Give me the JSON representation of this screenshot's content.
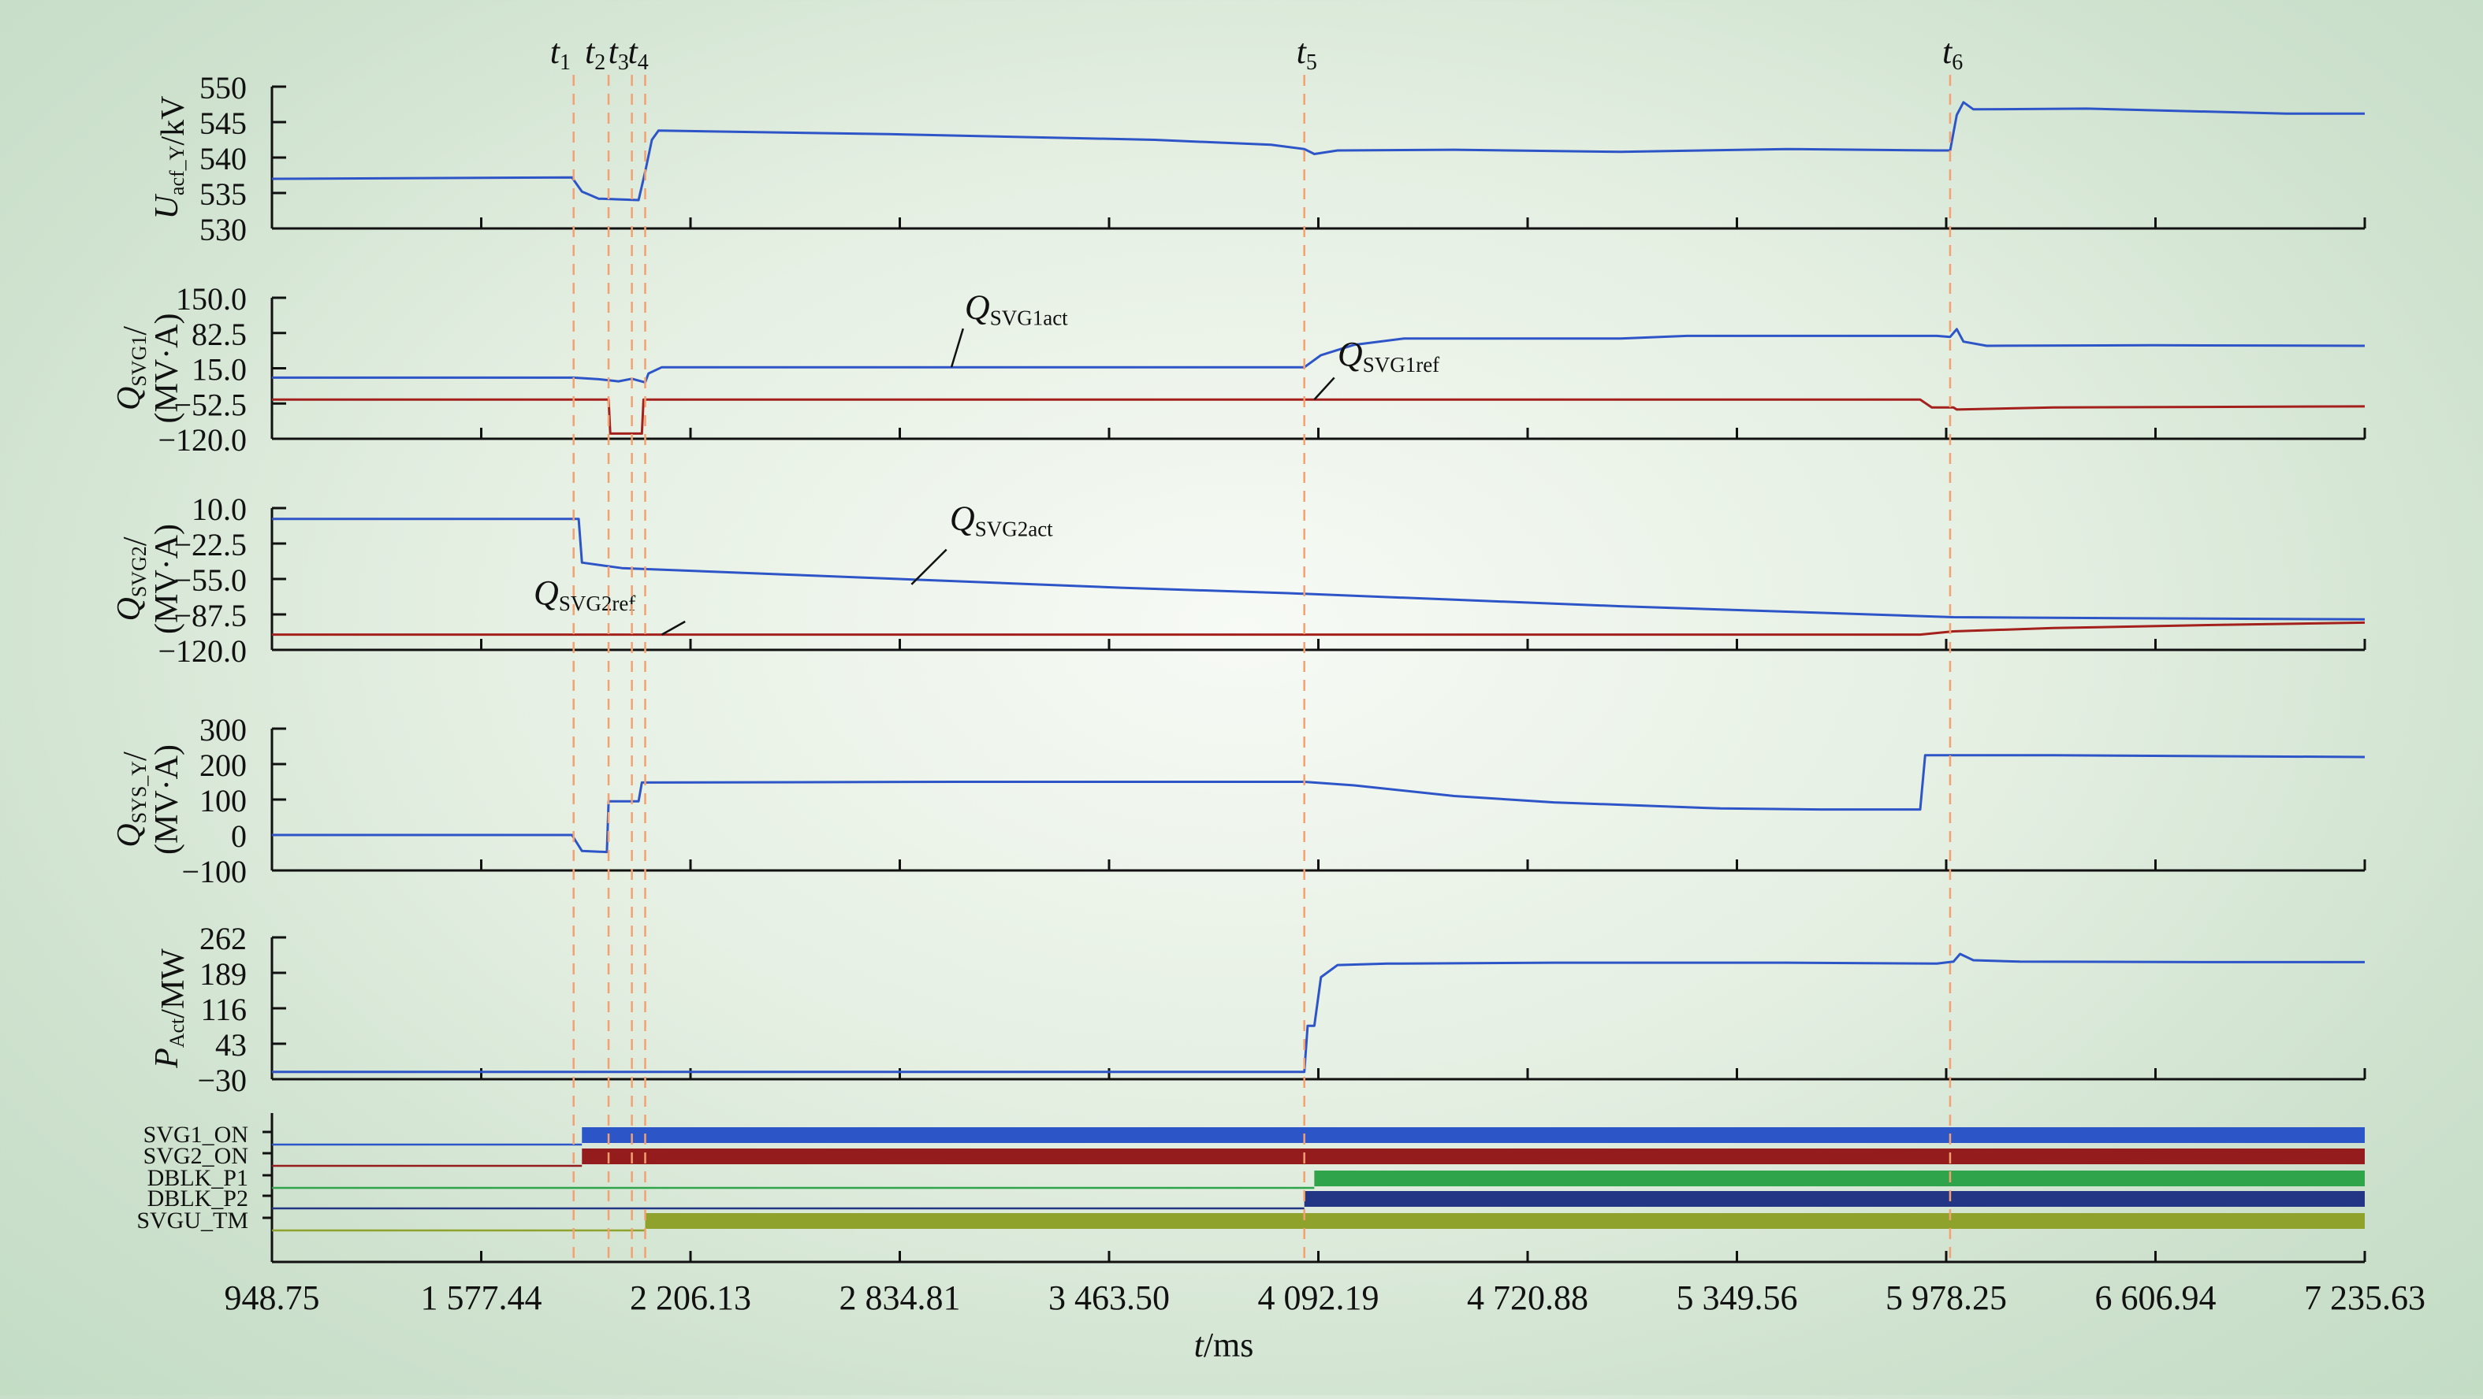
{
  "chart_data": {
    "type": "line",
    "x_unit_label": {
      "italic": "t",
      "rest": "/ms"
    },
    "x_ticks": [
      "948.75",
      "1 577.44",
      "2 206.13",
      "2 834.81",
      "3 463.50",
      "4 092.19",
      "4 720.88",
      "5 349.56",
      "5 978.25",
      "6 606.94",
      "7 235.63"
    ],
    "xlim": [
      948.75,
      7235.63
    ],
    "event_markers": [
      {
        "label": "t",
        "sub": "1",
        "x": 1855
      },
      {
        "label": "t",
        "sub": "2",
        "x": 1960
      },
      {
        "label": "t",
        "sub": "3",
        "x": 2030
      },
      {
        "label": "t",
        "sub": "4",
        "x": 2070
      },
      {
        "label": "t",
        "sub": "5",
        "x": 4050
      },
      {
        "label": "t",
        "sub": "6",
        "x": 5990
      }
    ],
    "panels": [
      {
        "id": "uacf",
        "ylabel": {
          "lines": [
            [
              {
                "t": "U",
                "i": true
              },
              {
                "t": "acf_Y",
                "sub": true
              },
              {
                "t": "/kV"
              }
            ]
          ]
        },
        "yticks": [
          "550",
          "545",
          "540",
          "535",
          "530"
        ],
        "ylim": [
          530,
          550
        ],
        "series": [
          {
            "color": "#2e55c8",
            "points": [
              [
                948.75,
                537.0
              ],
              [
                1850,
                537.2
              ],
              [
                1880,
                535.2
              ],
              [
                1900,
                534.8
              ],
              [
                1930,
                534.2
              ],
              [
                2050,
                534.0
              ],
              [
                2070,
                538.0
              ],
              [
                2090,
                542.5
              ],
              [
                2110,
                543.8
              ],
              [
                2800,
                543.3
              ],
              [
                3600,
                542.5
              ],
              [
                3950,
                541.8
              ],
              [
                4050,
                541.2
              ],
              [
                4080,
                540.5
              ],
              [
                4150,
                541.0
              ],
              [
                4500,
                541.1
              ],
              [
                5000,
                540.8
              ],
              [
                5500,
                541.2
              ],
              [
                5950,
                541.0
              ],
              [
                5990,
                541.0
              ],
              [
                6010,
                546.0
              ],
              [
                6030,
                547.8
              ],
              [
                6060,
                546.8
              ],
              [
                6400,
                546.9
              ],
              [
                7000,
                546.2
              ],
              [
                7235.63,
                546.2
              ]
            ]
          }
        ]
      },
      {
        "id": "qsvg1",
        "ylabel": {
          "lines": [
            [
              {
                "t": "Q",
                "i": true
              },
              {
                "t": "SVG1",
                "sub": true
              },
              {
                "t": "/"
              }
            ],
            [
              {
                "t": "(MV·A)"
              }
            ]
          ]
        },
        "yticks": [
          "150.0",
          "82.5",
          "15.0",
          "−52.5",
          "−120.0"
        ],
        "ylim": [
          -120,
          150
        ],
        "series": [
          {
            "name": "QSVG1act",
            "color": "#2e55c8",
            "points": [
              [
                948.75,
                -3
              ],
              [
                1855,
                -3
              ],
              [
                1930,
                -6
              ],
              [
                1990,
                -10
              ],
              [
                2030,
                -5
              ],
              [
                2070,
                -12
              ],
              [
                2080,
                5
              ],
              [
                2120,
                17
              ],
              [
                2300,
                17
              ],
              [
                3900,
                17
              ],
              [
                4050,
                17
              ],
              [
                4100,
                40
              ],
              [
                4200,
                60
              ],
              [
                4350,
                72
              ],
              [
                5000,
                72
              ],
              [
                5200,
                77
              ],
              [
                5950,
                77
              ],
              [
                5990,
                75
              ],
              [
                6010,
                90
              ],
              [
                6030,
                66
              ],
              [
                6100,
                58
              ],
              [
                6600,
                59
              ],
              [
                7235.63,
                58
              ]
            ]
          },
          {
            "name": "QSVG1ref",
            "color": "#a3201c",
            "points": [
              [
                948.75,
                -45
              ],
              [
                1960,
                -45
              ],
              [
                1965,
                -110
              ],
              [
                2060,
                -110
              ],
              [
                2065,
                -45
              ],
              [
                3900,
                -45
              ],
              [
                5900,
                -45
              ],
              [
                5935,
                -60
              ],
              [
                6000,
                -60
              ],
              [
                6010,
                -64
              ],
              [
                6300,
                -60
              ],
              [
                7235.63,
                -58
              ]
            ]
          }
        ],
        "annotations": [
          {
            "base": "Q",
            "sub": "SVG1act",
            "tx": 3030,
            "ty": 110,
            "lx0": 3025,
            "ly0": 91,
            "lx1": 2990,
            "ly1": 17
          },
          {
            "base": "Q",
            "sub": "SVG1ref",
            "tx": 4150,
            "ty": 20,
            "lx0": 4140,
            "ly0": -3,
            "lx1": 4080,
            "ly1": -45
          }
        ]
      },
      {
        "id": "qsvg2",
        "ylabel": {
          "lines": [
            [
              {
                "t": "Q",
                "i": true
              },
              {
                "t": "SVG2",
                "sub": true
              },
              {
                "t": "/"
              }
            ],
            [
              {
                "t": "(MV·A)"
              }
            ]
          ]
        },
        "yticks": [
          "10.0",
          "−22.5",
          "−55.0",
          "−87.5",
          "−120.0"
        ],
        "ylim": [
          -120,
          10
        ],
        "series": [
          {
            "name": "QSVG2act",
            "color": "#2e55c8",
            "points": [
              [
                948.75,
                0
              ],
              [
                1870,
                0
              ],
              [
                1880,
                -40
              ],
              [
                2000,
                -45
              ],
              [
                2500,
                -51
              ],
              [
                3000,
                -57
              ],
              [
                3500,
                -63
              ],
              [
                4000,
                -68
              ],
              [
                4500,
                -74
              ],
              [
                5000,
                -80
              ],
              [
                5500,
                -85
              ],
              [
                6000,
                -90
              ],
              [
                6500,
                -91
              ],
              [
                7235.63,
                -92
              ]
            ]
          },
          {
            "name": "QSVG2ref",
            "color": "#a3201c",
            "points": [
              [
                948.75,
                -106
              ],
              [
                5900,
                -106
              ],
              [
                6000,
                -103
              ],
              [
                6300,
                -100
              ],
              [
                6800,
                -97
              ],
              [
                7235.63,
                -95
              ]
            ]
          }
        ],
        "annotations": [
          {
            "base": "Q",
            "sub": "SVG2act",
            "tx": 2985,
            "ty": -10,
            "lx0": 2975,
            "ly0": -28,
            "lx1": 2870,
            "ly1": -60
          },
          {
            "base": "Q",
            "sub": "SVG2ref",
            "tx": 1735,
            "ty": -78,
            "lx0": 2190,
            "ly0": -94,
            "lx1": 2120,
            "ly1": -106
          }
        ]
      },
      {
        "id": "qsys",
        "ylabel": {
          "lines": [
            [
              {
                "t": "Q",
                "i": true
              },
              {
                "t": "SYS_Y",
                "sub": true
              },
              {
                "t": "/"
              }
            ],
            [
              {
                "t": "(MV·A)"
              }
            ]
          ]
        },
        "yticks": [
          "300",
          "200",
          "100",
          "0",
          "−100"
        ],
        "ylim": [
          -100,
          300
        ],
        "series": [
          {
            "color": "#2e55c8",
            "points": [
              [
                948.75,
                0
              ],
              [
                1850,
                0
              ],
              [
                1880,
                -45
              ],
              [
                1955,
                -48
              ],
              [
                1960,
                95
              ],
              [
                2050,
                95
              ],
              [
                2060,
                148
              ],
              [
                3000,
                150
              ],
              [
                3800,
                150
              ],
              [
                4050,
                150
              ],
              [
                4200,
                140
              ],
              [
                4500,
                110
              ],
              [
                4800,
                92
              ],
              [
                5300,
                75
              ],
              [
                5600,
                72
              ],
              [
                5900,
                72
              ],
              [
                5915,
                225
              ],
              [
                6300,
                225
              ],
              [
                7235.63,
                220
              ]
            ]
          }
        ]
      },
      {
        "id": "pact",
        "ylabel": {
          "lines": [
            [
              {
                "t": "P",
                "i": true
              },
              {
                "t": "Act",
                "sub": true
              },
              {
                "t": "/MW"
              }
            ]
          ]
        },
        "yticks": [
          "262",
          "189",
          "116",
          "43",
          "−30"
        ],
        "ylim": [
          -30,
          262
        ],
        "series": [
          {
            "color": "#2e55c8",
            "points": [
              [
                948.75,
                -15
              ],
              [
                4050,
                -15
              ],
              [
                4060,
                80
              ],
              [
                4080,
                80
              ],
              [
                4100,
                180
              ],
              [
                4150,
                205
              ],
              [
                4300,
                208
              ],
              [
                4800,
                210
              ],
              [
                5500,
                210
              ],
              [
                5950,
                208
              ],
              [
                6000,
                212
              ],
              [
                6020,
                228
              ],
              [
                6060,
                215
              ],
              [
                6200,
                212
              ],
              [
                6800,
                211
              ],
              [
                7235.63,
                211
              ]
            ]
          }
        ]
      }
    ],
    "digital": {
      "signals": [
        {
          "name": "SVG1_ON",
          "color": "#2c56c8",
          "start": 1880
        },
        {
          "name": "SVG2_ON",
          "color": "#951c1c",
          "start": 1880
        },
        {
          "name": "DBLK_P1",
          "color": "#2fa44a",
          "start": 4080
        },
        {
          "name": "DBLK_P2",
          "color": "#233585",
          "start": 4050
        },
        {
          "name": "SVGU_TM",
          "color": "#8ea22c",
          "start": 2070
        }
      ]
    }
  }
}
